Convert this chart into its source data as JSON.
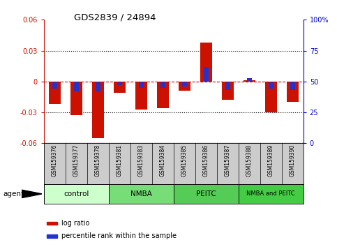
{
  "title": "GDS2839 / 24894",
  "samples": [
    "GSM159376",
    "GSM159377",
    "GSM159378",
    "GSM159381",
    "GSM159383",
    "GSM159384",
    "GSM159385",
    "GSM159386",
    "GSM159387",
    "GSM159388",
    "GSM159389",
    "GSM159390"
  ],
  "log_ratios": [
    -0.022,
    -0.033,
    -0.055,
    -0.011,
    -0.027,
    -0.026,
    -0.009,
    0.038,
    -0.018,
    0.001,
    -0.03,
    -0.02
  ],
  "percentile_ranks": [
    44,
    42,
    42,
    47,
    45,
    45,
    46,
    62,
    43,
    53,
    44,
    43
  ],
  "groups": [
    {
      "label": "control",
      "start": 0,
      "end": 3,
      "color": "#ccffcc"
    },
    {
      "label": "NMBA",
      "start": 3,
      "end": 6,
      "color": "#66dd66"
    },
    {
      "label": "PEITC",
      "start": 6,
      "end": 9,
      "color": "#66dd66"
    },
    {
      "label": "NMBA and PEITC",
      "start": 9,
      "end": 12,
      "color": "#44cc44"
    }
  ],
  "ylim_left": [
    -0.06,
    0.06
  ],
  "ylim_right": [
    0,
    100
  ],
  "bar_color_red": "#cc1100",
  "bar_color_blue": "#2233cc",
  "bar_width": 0.55,
  "blue_bar_width": 0.22,
  "yticks_left": [
    -0.06,
    -0.03,
    0,
    0.03,
    0.06
  ],
  "yticks_right": [
    0,
    25,
    50,
    75,
    100
  ],
  "ytick_labels_left": [
    "-0.06",
    "-0.03",
    "0",
    "0.03",
    "0.06"
  ],
  "ytick_labels_right": [
    "0",
    "25",
    "50",
    "75",
    "100%"
  ],
  "hline_color": "#cc0000",
  "dotted_lines": [
    -0.03,
    0.03
  ],
  "agent_label": "agent",
  "legend_red_label": "log ratio",
  "legend_blue_label": "percentile rank within the sample",
  "group_colors": [
    "#ccffcc",
    "#77dd77",
    "#55cc55",
    "#44cc44"
  ],
  "sample_bg": "#cccccc"
}
